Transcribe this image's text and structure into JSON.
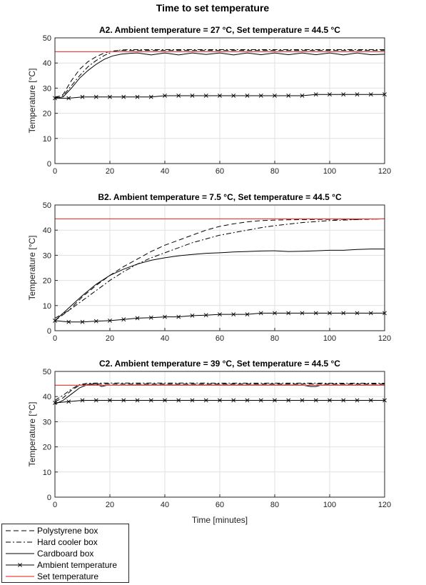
{
  "figure_title": "Time to set temperature",
  "shared_xlabel": "Time [minutes]",
  "legend": {
    "placement": "bottom-left",
    "entries": [
      {
        "name": "Polystyrene box",
        "style": "dashed"
      },
      {
        "name": "Hard cooler box",
        "style": "dashdot"
      },
      {
        "name": "Cardboard box",
        "style": "solid"
      },
      {
        "name": "Ambient temperature",
        "style": "solid-x"
      },
      {
        "name": "Set temperature",
        "style": "solid-red"
      }
    ]
  },
  "colors": {
    "set_temperature": "#e8483f",
    "series": "#000000",
    "grid": "#e0e0e0"
  },
  "chart_data": [
    {
      "type": "line",
      "title": "A2. Ambient temperature = 27 °C, Set temperature = 44.5 °C",
      "ylabel": "Temperature [°C]",
      "xlim": [
        0,
        120
      ],
      "ylim": [
        0,
        50
      ],
      "xticks": [
        0,
        20,
        40,
        60,
        80,
        100,
        120
      ],
      "yticks": [
        0,
        10,
        20,
        30,
        40,
        50
      ],
      "grid": true,
      "series": [
        {
          "name": "Polystyrene box",
          "x": [
            0,
            3,
            6,
            9,
            12,
            15,
            18,
            21,
            24,
            27,
            30,
            120
          ],
          "y": [
            26,
            27.5,
            33,
            37.5,
            40.5,
            42.5,
            44,
            44.8,
            45,
            45,
            45,
            45
          ]
        },
        {
          "name": "Hard cooler box",
          "x": [
            0,
            3,
            6,
            9,
            12,
            15,
            18,
            21,
            24,
            27,
            30,
            120
          ],
          "y": [
            26.5,
            27,
            31,
            35,
            38.5,
            41,
            43,
            44.5,
            45.2,
            45.3,
            45.3,
            45.3
          ]
        },
        {
          "name": "Cardboard box",
          "x": [
            0,
            3,
            6,
            9,
            12,
            15,
            18,
            21,
            24,
            27,
            30,
            35,
            40,
            45,
            50,
            55,
            60,
            65,
            70,
            75,
            80,
            85,
            90,
            95,
            100,
            105,
            110,
            115,
            120
          ],
          "y": [
            26,
            26.5,
            30,
            34,
            37,
            39.5,
            41.5,
            42.8,
            43.5,
            43.8,
            44,
            43.2,
            44,
            43.2,
            44,
            43.4,
            44,
            43.2,
            44,
            43.3,
            44,
            43.3,
            44,
            43.3,
            44,
            43.2,
            44,
            43.3,
            43.5
          ]
        },
        {
          "name": "Ambient temperature",
          "x": [
            0,
            5,
            10,
            15,
            20,
            25,
            30,
            35,
            40,
            45,
            50,
            55,
            60,
            65,
            70,
            75,
            80,
            85,
            90,
            95,
            100,
            105,
            110,
            115,
            120
          ],
          "y": [
            26,
            26,
            26.5,
            26.5,
            26.5,
            26.5,
            26.5,
            26.5,
            27,
            27,
            27,
            27,
            27,
            27,
            27,
            27,
            27,
            27,
            27,
            27.5,
            27.5,
            27.5,
            27.5,
            27.5,
            27.5
          ]
        },
        {
          "name": "Set temperature",
          "x": [
            0,
            120
          ],
          "y": [
            44.5,
            44.5
          ]
        }
      ]
    },
    {
      "type": "line",
      "title": "B2. Ambient temperature = 7.5 °C, Set temperature = 44.5 °C",
      "ylabel": "Temperature [°C]",
      "xlim": [
        0,
        120
      ],
      "ylim": [
        0,
        50
      ],
      "xticks": [
        0,
        20,
        40,
        60,
        80,
        100,
        120
      ],
      "yticks": [
        0,
        10,
        20,
        30,
        40,
        50
      ],
      "grid": true,
      "series": [
        {
          "name": "Polystyrene box",
          "x": [
            0,
            5,
            10,
            15,
            20,
            25,
            30,
            35,
            40,
            45,
            50,
            55,
            60,
            65,
            70,
            75,
            80,
            90,
            100,
            110,
            120
          ],
          "y": [
            4,
            8,
            13.5,
            18,
            22,
            25.5,
            28.5,
            31.5,
            34,
            36,
            38,
            40,
            41.5,
            42.5,
            43.3,
            43.8,
            44,
            44.2,
            44.3,
            44.3,
            44.5
          ]
        },
        {
          "name": "Hard cooler box",
          "x": [
            0,
            5,
            10,
            15,
            20,
            25,
            30,
            35,
            40,
            45,
            50,
            55,
            60,
            65,
            70,
            75,
            80,
            90,
            100,
            110,
            120
          ],
          "y": [
            5,
            8,
            12,
            16,
            20,
            23.5,
            26.5,
            29,
            31,
            33,
            35,
            36.5,
            38,
            39,
            40,
            41,
            41.8,
            43,
            43.8,
            44.2,
            44.5
          ]
        },
        {
          "name": "Cardboard box",
          "x": [
            0,
            5,
            10,
            15,
            20,
            25,
            30,
            35,
            40,
            45,
            50,
            55,
            60,
            65,
            70,
            75,
            80,
            85,
            90,
            95,
            100,
            105,
            110,
            115,
            120
          ],
          "y": [
            4,
            9,
            14,
            18.5,
            22,
            24.5,
            26.5,
            28,
            29,
            29.8,
            30.3,
            30.8,
            31,
            31.3,
            31.5,
            31.7,
            31.8,
            31.5,
            31.6,
            31.8,
            32,
            32,
            32.3,
            32.5,
            32.5
          ]
        },
        {
          "name": "Ambient temperature",
          "x": [
            0,
            5,
            10,
            15,
            20,
            25,
            30,
            35,
            40,
            45,
            50,
            55,
            60,
            65,
            70,
            75,
            80,
            85,
            90,
            95,
            100,
            105,
            110,
            115,
            120
          ],
          "y": [
            4,
            3.5,
            3.5,
            3.8,
            4,
            4.5,
            5,
            5.2,
            5.5,
            5.5,
            6,
            6.2,
            6.5,
            6.5,
            6.5,
            7,
            7,
            7,
            7,
            7,
            7,
            7,
            7,
            7,
            7
          ]
        },
        {
          "name": "Set temperature",
          "x": [
            0,
            120
          ],
          "y": [
            44.5,
            44.5
          ]
        }
      ]
    },
    {
      "type": "line",
      "title": "C2. Ambient temperature = 39 °C, Set temperature = 44.5 °C",
      "ylabel": "Temperature [°C]",
      "xlim": [
        0,
        120
      ],
      "ylim": [
        0,
        50
      ],
      "xticks": [
        0,
        20,
        40,
        60,
        80,
        100,
        120
      ],
      "yticks": [
        0,
        10,
        20,
        30,
        40,
        50
      ],
      "grid": true,
      "series": [
        {
          "name": "Polystyrene box",
          "x": [
            0,
            3,
            6,
            9,
            12,
            15,
            18,
            120
          ],
          "y": [
            38,
            39.5,
            42.5,
            44.5,
            45,
            45,
            45,
            45
          ]
        },
        {
          "name": "Hard cooler box",
          "x": [
            0,
            3,
            6,
            9,
            12,
            15,
            18,
            120
          ],
          "y": [
            38.5,
            40.5,
            43,
            44.8,
            45.3,
            45.4,
            45.4,
            45.3
          ]
        },
        {
          "name": "Cardboard box",
          "x": [
            0,
            3,
            6,
            9,
            12,
            15,
            17,
            19,
            30,
            60,
            90,
            93,
            95,
            97,
            120
          ],
          "y": [
            37,
            38.5,
            41,
            43.5,
            44.8,
            45,
            44,
            44.5,
            44.6,
            44.6,
            44.6,
            44,
            44,
            44.6,
            44.6
          ]
        },
        {
          "name": "Ambient temperature",
          "x": [
            0,
            5,
            10,
            15,
            20,
            25,
            30,
            35,
            40,
            45,
            50,
            55,
            60,
            65,
            70,
            75,
            80,
            85,
            90,
            95,
            100,
            105,
            110,
            115,
            120
          ],
          "y": [
            37.5,
            38,
            38.5,
            38.5,
            38.5,
            38.5,
            38.5,
            38.5,
            38.5,
            38.5,
            38.5,
            38.5,
            38.5,
            38.5,
            38.5,
            38.5,
            38.5,
            38.5,
            38.5,
            38.5,
            38.5,
            38.5,
            38.5,
            38.5,
            38.5
          ]
        },
        {
          "name": "Set temperature",
          "x": [
            0,
            120
          ],
          "y": [
            44.5,
            44.5
          ]
        }
      ]
    }
  ]
}
